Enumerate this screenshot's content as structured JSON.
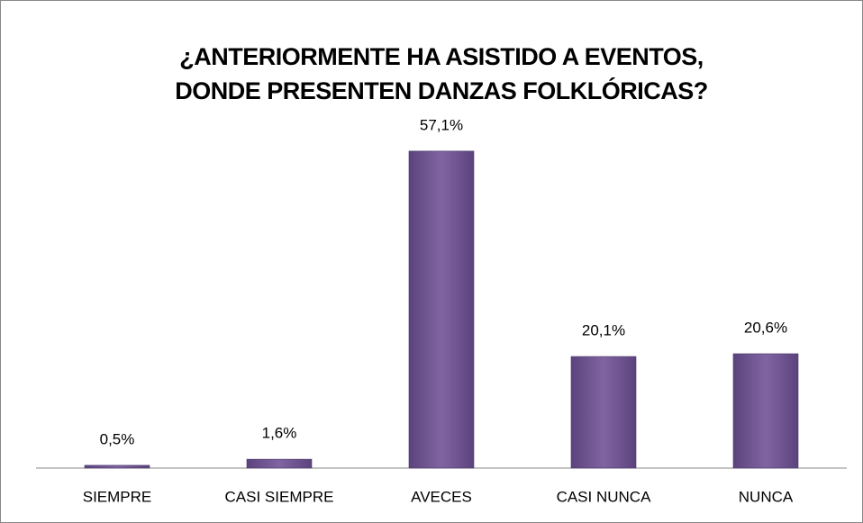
{
  "chart_data": {
    "type": "bar",
    "title": [
      "¿ANTERIORMENTE HA ASISTIDO A EVENTOS,",
      "DONDE PRESENTEN DANZAS FOLKLÓRICAS?"
    ],
    "categories": [
      "SIEMPRE",
      "CASI SIEMPRE",
      "AVECES",
      "CASI NUNCA",
      "NUNCA"
    ],
    "values": [
      0.5,
      1.6,
      57.1,
      20.1,
      20.6
    ],
    "value_labels": [
      "0,5%",
      "1,6%",
      "57,1%",
      "20,1%",
      "20,6%"
    ],
    "color": "#8064a2",
    "ylim": [
      0,
      60
    ]
  }
}
